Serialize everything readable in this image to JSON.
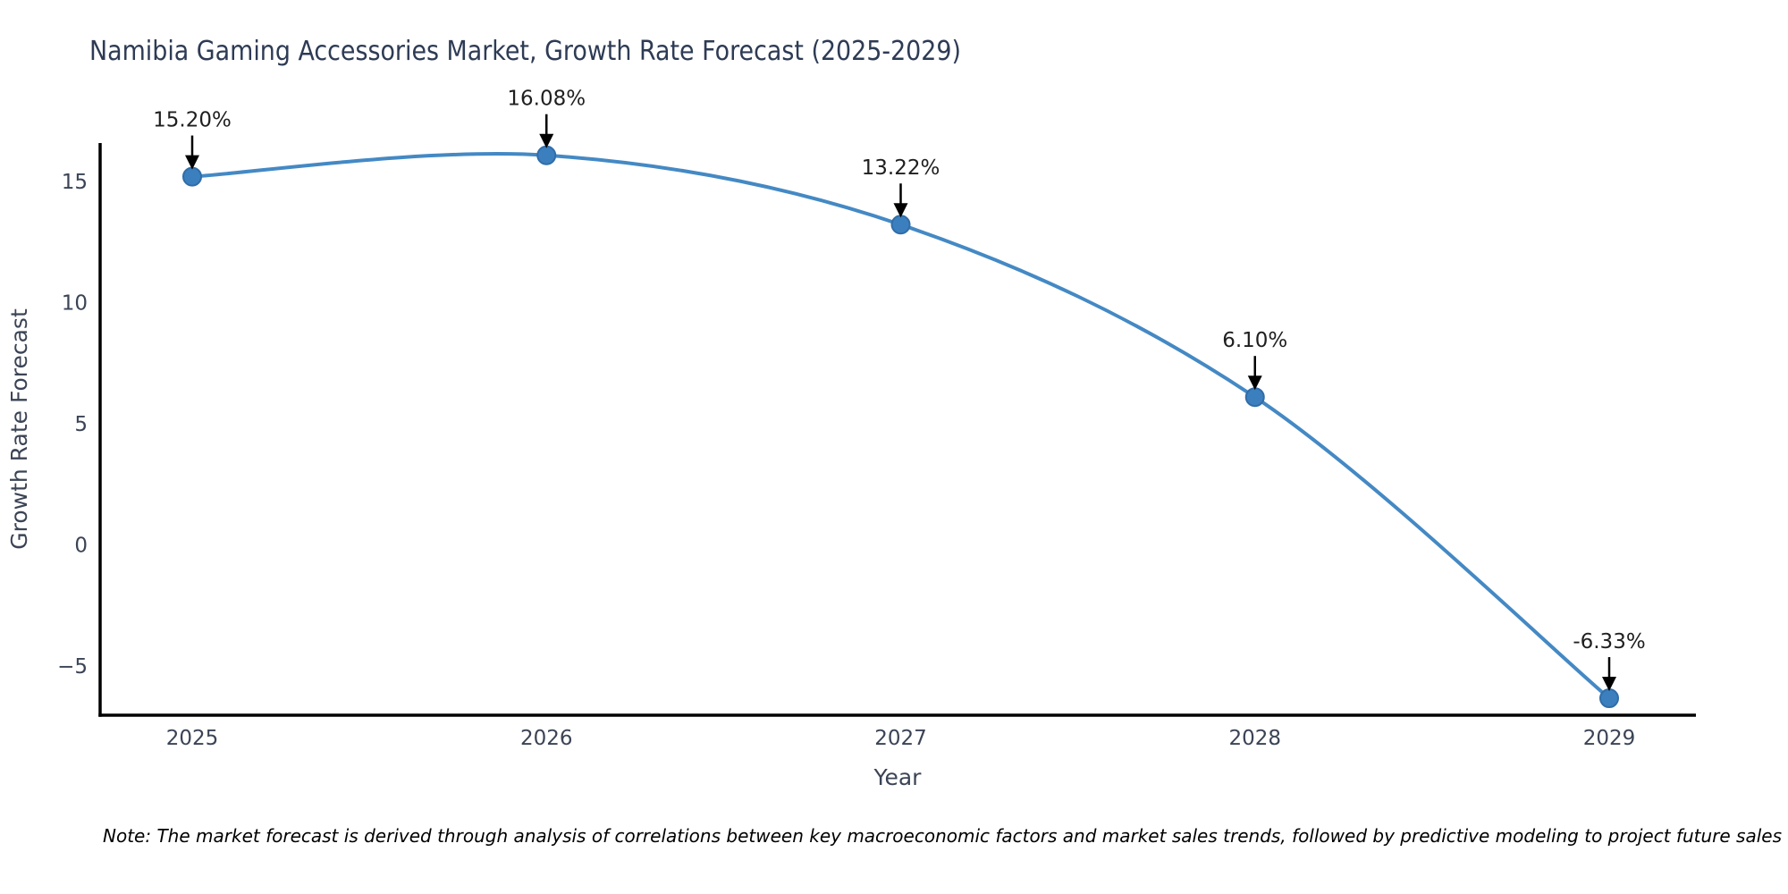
{
  "chart_data": {
    "type": "line",
    "title": "Namibia Gaming Accessories Market, Growth Rate Forecast (2025-2029)",
    "xlabel": "Year",
    "ylabel": "Growth Rate Forecast",
    "categories": [
      "2025",
      "2026",
      "2027",
      "2028",
      "2029"
    ],
    "series": [
      {
        "name": "Growth Rate Forecast",
        "values": [
          15.2,
          16.08,
          13.22,
          6.1,
          -6.33
        ]
      }
    ],
    "annotations": [
      "15.20%",
      "16.08%",
      "13.22%",
      "6.10%",
      "-6.33%"
    ],
    "yticks": [
      15,
      10,
      5,
      0,
      -5
    ],
    "ytick_labels": [
      "15",
      "10",
      "5",
      "0",
      "−5"
    ],
    "ylim": [
      -7.1,
      16.6
    ],
    "grid": false,
    "legend_position": "none",
    "line_color": "#4489c4",
    "marker_color": "#3b7fbe",
    "marker_edge_color": "#316da8",
    "axis_color": "#000000",
    "tick_label_color": "#3b4455",
    "axis_label_color": "#3b4455",
    "title_color": "#2e3b55",
    "annotation_color": "#1f1f1f",
    "note_color": "#000000",
    "note": "Note: The market forecast is derived through analysis of correlations between key macroeconomic factors and market sales trends, followed by predictive modeling to project future sales"
  }
}
